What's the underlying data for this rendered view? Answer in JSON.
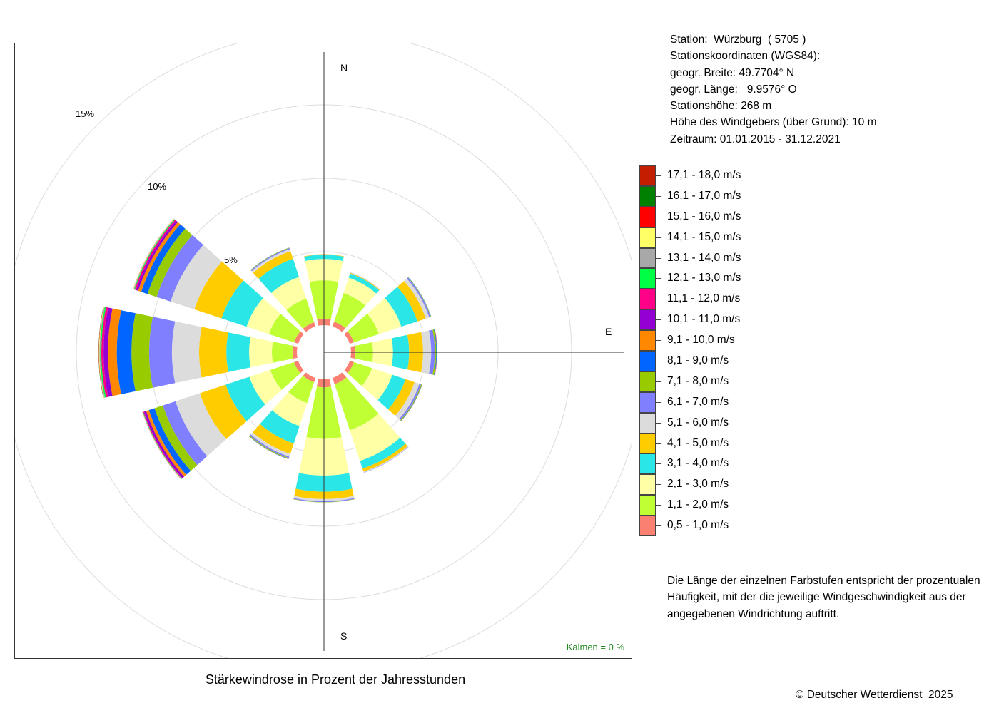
{
  "chart_data": {
    "type": "windrose",
    "title": "Stärkewindrose in Prozent der Jahresstunden",
    "directions": [
      "N",
      "NNO",
      "ONO",
      "O",
      "OSO",
      "SSO",
      "S",
      "SSW",
      "WSW",
      "W",
      "WNW",
      "NNW"
    ],
    "direction_labels": [
      "N",
      "E",
      "S"
    ],
    "ring_labels": [
      "5%",
      "10%",
      "15%"
    ],
    "ring_values": [
      5,
      10,
      15,
      20
    ],
    "calm_label": "Kalmen  =  0 %",
    "speed_classes": [
      {
        "label": "0,5 - 1,0 m/s",
        "color": "#fa8072"
      },
      {
        "label": "1,1 - 2,0 m/s",
        "color": "#bfff33"
      },
      {
        "label": "2,1 - 3,0 m/s",
        "color": "#ffffa6"
      },
      {
        "label": "3,1 - 4,0 m/s",
        "color": "#2ae6e6"
      },
      {
        "label": "4,1 - 5,0 m/s",
        "color": "#ffcc00"
      },
      {
        "label": "5,1 - 6,0 m/s",
        "color": "#dcdcdc"
      },
      {
        "label": "6,1 - 7,0 m/s",
        "color": "#8080ff"
      },
      {
        "label": "7,1 - 8,0 m/s",
        "color": "#99cc00"
      },
      {
        "label": "8,1 - 9,0 m/s",
        "color": "#0066ff"
      },
      {
        "label": "9,1 - 10,0 m/s",
        "color": "#ff8800"
      },
      {
        "label": "10,1 - 11,0 m/s",
        "color": "#9400d3"
      },
      {
        "label": "11,1 - 12,0 m/s",
        "color": "#ff0088"
      },
      {
        "label": "12,1 - 13,0 m/s",
        "color": "#00ff44"
      },
      {
        "label": "13,1 - 14,0 m/s",
        "color": "#a8a8a8"
      },
      {
        "label": "14,1 - 15,0 m/s",
        "color": "#ffff66"
      },
      {
        "label": "15,1 - 16,0 m/s",
        "color": "#ff0000"
      },
      {
        "label": "16,1 - 17,0 m/s",
        "color": "#008000"
      },
      {
        "label": "17,1 - 18,0 m/s",
        "color": "#c41e00"
      }
    ],
    "series": [
      {
        "direction": "N",
        "values": [
          0.45,
          2.6,
          1.45,
          0.3,
          0.03,
          0.01,
          0.0,
          0.0,
          0.0,
          0.0,
          0.0,
          0.0,
          0.0,
          0.0,
          0.0,
          0.0,
          0.0,
          0.0
        ]
      },
      {
        "direction": "NNO",
        "values": [
          0.35,
          2.05,
          1.1,
          0.3,
          0.05,
          0.02,
          0.01,
          0.0,
          0.0,
          0.0,
          0.0,
          0.0,
          0.0,
          0.0,
          0.0,
          0.0,
          0.0,
          0.0
        ]
      },
      {
        "direction": "ONO",
        "values": [
          0.3,
          1.8,
          1.6,
          1.15,
          0.6,
          0.25,
          0.1,
          0.03,
          0.01,
          0.0,
          0.0,
          0.0,
          0.0,
          0.0,
          0.0,
          0.0,
          0.0,
          0.0
        ]
      },
      {
        "direction": "O",
        "values": [
          0.3,
          1.2,
          1.35,
          1.1,
          0.95,
          0.55,
          0.25,
          0.1,
          0.04,
          0.02,
          0.01,
          0.0,
          0.0,
          0.0,
          0.0,
          0.0,
          0.0,
          0.0
        ]
      },
      {
        "direction": "OSO",
        "values": [
          0.3,
          1.3,
          1.45,
          0.95,
          0.65,
          0.35,
          0.12,
          0.05,
          0.02,
          0.01,
          0.0,
          0.0,
          0.0,
          0.0,
          0.0,
          0.0,
          0.0,
          0.0
        ]
      },
      {
        "direction": "SSO",
        "values": [
          0.45,
          3.3,
          2.2,
          0.55,
          0.22,
          0.06,
          0.02,
          0.0,
          0.0,
          0.0,
          0.0,
          0.0,
          0.0,
          0.0,
          0.0,
          0.0,
          0.0,
          0.0
        ]
      },
      {
        "direction": "S",
        "values": [
          0.55,
          3.5,
          2.5,
          1.1,
          0.5,
          0.15,
          0.06,
          0.02,
          0.0,
          0.0,
          0.0,
          0.0,
          0.0,
          0.0,
          0.0,
          0.0,
          0.0,
          0.0
        ]
      },
      {
        "direction": "SSW",
        "values": [
          0.3,
          1.5,
          1.65,
          1.25,
          0.75,
          0.2,
          0.1,
          0.05,
          0.02,
          0.01,
          0.0,
          0.0,
          0.0,
          0.0,
          0.0,
          0.0,
          0.0,
          0.0
        ]
      },
      {
        "direction": "WSW",
        "values": [
          0.3,
          1.7,
          1.5,
          1.7,
          1.85,
          1.75,
          0.9,
          0.6,
          0.4,
          0.2,
          0.15,
          0.05,
          0.03,
          0.02,
          0.01,
          0.01,
          0.0,
          0.0
        ]
      },
      {
        "direction": "W",
        "values": [
          0.3,
          1.4,
          1.55,
          1.55,
          1.85,
          1.85,
          1.55,
          1.2,
          1.0,
          0.6,
          0.3,
          0.15,
          0.08,
          0.05,
          0.03,
          0.02,
          0.01,
          0.0
        ]
      },
      {
        "direction": "WNW",
        "values": [
          0.3,
          1.8,
          1.6,
          1.8,
          1.95,
          1.7,
          1.0,
          0.65,
          0.45,
          0.22,
          0.15,
          0.1,
          0.05,
          0.03,
          0.02,
          0.01,
          0.0,
          0.0
        ]
      },
      {
        "direction": "NNW",
        "values": [
          0.3,
          1.7,
          1.55,
          1.3,
          0.55,
          0.15,
          0.07,
          0.03,
          0.01,
          0.0,
          0.0,
          0.0,
          0.0,
          0.0,
          0.0,
          0.0,
          0.0,
          0.0
        ]
      }
    ]
  },
  "station": {
    "lines": [
      "Station:  Würzburg  ( 5705 )",
      "Stationskoordinaten (WGS84):",
      "geogr. Breite: 49.7704° N",
      "geogr. Länge:   9.9576° O",
      "Stationshöhe: 268 m",
      "Höhe des Windgebers (über Grund): 10 m",
      "Zeitraum: 01.01.2015 - 31.12.2021"
    ]
  },
  "description": {
    "lines": [
      "Die Länge der einzelnen Farbstufen entspricht der prozentualen",
      "Häufigkeit, mit der die jeweilige Windgeschwindigkeit aus der",
      "angegebenen Windrichtung auftritt."
    ]
  },
  "copyright": "© Deutscher Wetterdienst  2025"
}
